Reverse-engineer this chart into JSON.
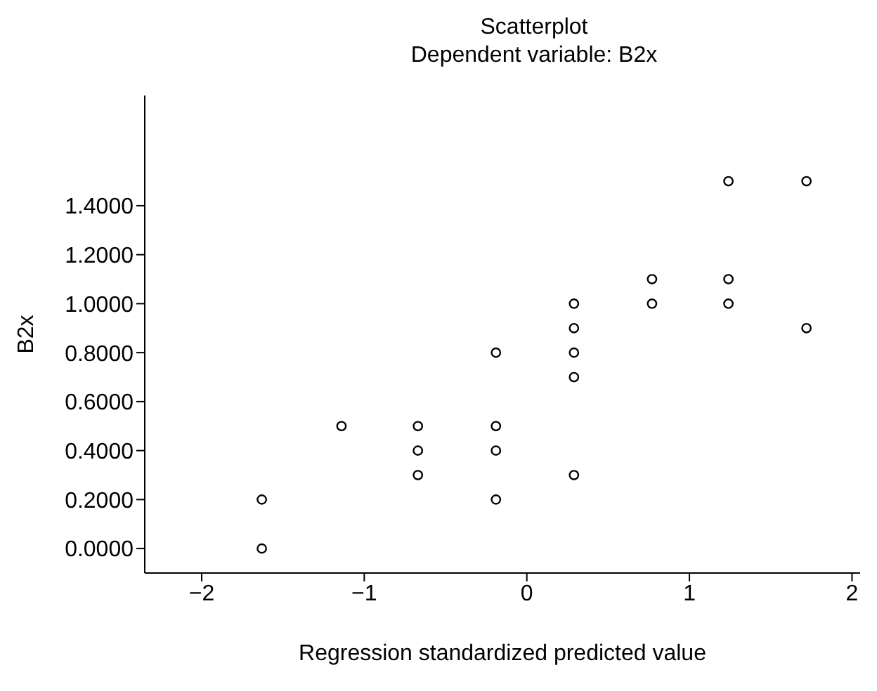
{
  "chart_data": {
    "type": "scatter",
    "title": "Scatterplot",
    "subtitle": "Dependent variable: B2x",
    "xlabel": "Regression standardized predicted value",
    "ylabel": "B2x",
    "x": [
      -1.63,
      -1.63,
      -1.14,
      -0.67,
      -0.67,
      -0.67,
      -0.19,
      -0.19,
      -0.19,
      -0.19,
      0.29,
      0.29,
      0.29,
      0.29,
      0.29,
      0.77,
      0.77,
      1.24,
      1.24,
      1.24,
      1.72,
      1.72
    ],
    "values": [
      0.2,
      0.0,
      0.5,
      0.5,
      0.4,
      0.3,
      0.8,
      0.5,
      0.4,
      0.2,
      1.0,
      0.9,
      0.8,
      0.7,
      0.3,
      1.1,
      1.0,
      1.5,
      1.1,
      1.0,
      1.5,
      0.9
    ],
    "color": "#000000",
    "marker": "circle",
    "grid": false,
    "legend": false,
    "xlim": [
      -2.35,
      2.05
    ],
    "ylim": [
      -0.1,
      1.85
    ],
    "xticks": [
      {
        "value": -2,
        "label": "−2"
      },
      {
        "value": -1,
        "label": "−1"
      },
      0,
      1,
      2
    ],
    "yticks": [
      {
        "value": 0,
        "label": "0.0000"
      },
      {
        "value": 0.2,
        "label": "0.2000"
      },
      {
        "value": 0.4,
        "label": "0.4000"
      },
      {
        "value": 0.6,
        "label": "0.6000"
      },
      {
        "value": 0.8,
        "label": "0.8000"
      },
      {
        "value": 1,
        "label": "1.0000"
      },
      {
        "value": 1.2,
        "label": "1.2000"
      },
      {
        "value": 1.4,
        "label": "1.4000"
      }
    ]
  }
}
